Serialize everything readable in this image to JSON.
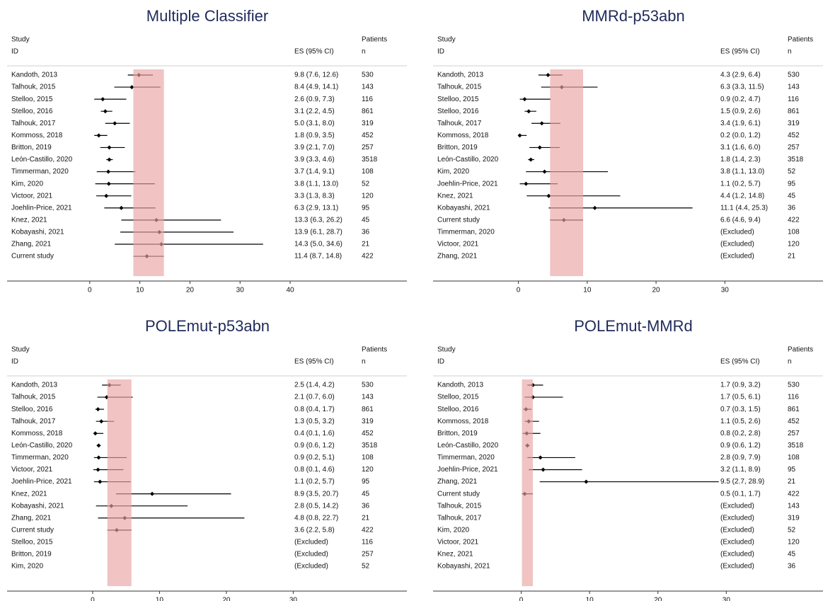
{
  "chart_data": [
    {
      "type": "forest",
      "title": "Multiple Classifier",
      "header": {
        "study": "Study",
        "id": "ID",
        "es": "ES (95% CI)",
        "patients": "Patients",
        "n": "n"
      },
      "categories": [
        "Kandoth, 2013",
        "Talhouk, 2015",
        "Stelloo, 2015",
        "Stelloo, 2016",
        "Talhouk, 2017",
        "Kommoss, 2018",
        "Britton, 2019",
        "León-Castillo, 2020",
        "Timmerman, 2020",
        "Kim, 2020",
        "Victoor, 2021",
        "Joehlin-Price, 2021",
        "Knez, 2021",
        "Kobayashi, 2021",
        "Zhang, 2021",
        "Current study"
      ],
      "values": [
        9.8,
        8.4,
        2.6,
        3.1,
        5.0,
        1.8,
        3.9,
        3.9,
        3.7,
        3.8,
        3.3,
        6.3,
        13.3,
        13.9,
        14.3,
        11.4
      ],
      "lower": [
        7.6,
        4.9,
        0.9,
        2.2,
        3.1,
        0.9,
        2.1,
        3.3,
        1.4,
        1.1,
        1.3,
        2.9,
        6.3,
        6.1,
        5.0,
        8.7
      ],
      "upper": [
        12.6,
        14.1,
        7.3,
        4.5,
        8.0,
        3.5,
        7.0,
        4.6,
        9.1,
        13.0,
        8.3,
        13.1,
        26.2,
        28.7,
        34.6,
        14.8
      ],
      "value_labels": [
        "9.8 (7.6, 12.6)",
        "8.4 (4.9, 14.1)",
        "2.6 (0.9, 7.3)",
        "3.1 (2.2, 4.5)",
        "5.0 (3.1, 8.0)",
        "1.8 (0.9, 3.5)",
        "3.9 (2.1, 7.0)",
        "3.9 (3.3, 4.6)",
        "3.7 (1.4, 9.1)",
        "3.8 (1.1, 13.0)",
        "3.3 (1.3, 8.3)",
        "6.3 (2.9, 13.1)",
        "13.3 (6.3, 26.2)",
        "13.9 (6.1, 28.7)",
        "14.3 (5.0, 34.6)",
        "11.4 (8.7, 14.8)"
      ],
      "n": [
        530,
        143,
        116,
        861,
        319,
        452,
        257,
        3518,
        108,
        52,
        120,
        95,
        45,
        36,
        21,
        422
      ],
      "band": [
        8.7,
        14.8
      ],
      "band_color": "#e9a3a3",
      "color": "#000000",
      "xlim": [
        -16.5,
        63.3
      ],
      "xticks": [
        0,
        10,
        20,
        30,
        40
      ]
    },
    {
      "type": "forest",
      "title": "MMRd-p53abn",
      "header": {
        "study": "Study",
        "id": "ID",
        "es": "ES (95% CI)",
        "patients": "Patients",
        "n": "n"
      },
      "categories": [
        "Kandoth, 2013",
        "Talhouk, 2015",
        "Stelloo, 2015",
        "Stelloo, 2016",
        "Talhouk, 2017",
        "Kommoss, 2018",
        "Britton, 2019",
        "León-Castillo, 2020",
        "Kim, 2020",
        "Joehlin-Price, 2021",
        "Knez, 2021",
        "Kobayashi, 2021",
        "Current study",
        "Timmerman, 2020",
        "Victoor, 2021",
        "Zhang, 2021"
      ],
      "values": [
        4.3,
        6.3,
        0.9,
        1.5,
        3.4,
        0.2,
        3.1,
        1.8,
        3.8,
        1.1,
        4.4,
        11.1,
        6.6,
        null,
        null,
        null
      ],
      "lower": [
        2.9,
        3.3,
        0.2,
        0.9,
        1.9,
        0.0,
        1.6,
        1.4,
        1.1,
        0.2,
        1.2,
        4.4,
        4.6,
        null,
        null,
        null
      ],
      "upper": [
        6.4,
        11.5,
        4.7,
        2.6,
        6.1,
        1.2,
        6.0,
        2.3,
        13.0,
        5.7,
        14.8,
        25.3,
        9.4,
        null,
        null,
        null
      ],
      "value_labels": [
        "4.3 (2.9, 6.4)",
        "6.3 (3.3, 11.5)",
        "0.9 (0.2, 4.7)",
        "1.5 (0.9, 2.6)",
        "3.4 (1.9, 6.1)",
        "0.2 (0.0, 1.2)",
        "3.1 (1.6, 6.0)",
        "1.8 (1.4, 2.3)",
        "3.8 (1.1, 13.0)",
        "1.1 (0.2, 5.7)",
        "4.4 (1.2, 14.8)",
        "11.1 (4.4, 25.3)",
        "6.6 (4.6, 9.4)",
        "(Excluded)",
        "(Excluded)",
        "(Excluded)"
      ],
      "n": [
        530,
        143,
        116,
        861,
        319,
        452,
        257,
        3518,
        52,
        95,
        45,
        36,
        422,
        108,
        120,
        21
      ],
      "band": [
        4.6,
        9.4
      ],
      "band_color": "#e9a3a3",
      "color": "#000000",
      "xlim": [
        -12.4,
        45.7
      ],
      "xticks": [
        0,
        10,
        20,
        30
      ]
    },
    {
      "type": "forest",
      "title": "POLEmut-p53abn",
      "header": {
        "study": "Study",
        "id": "ID",
        "es": "ES (95% CI)",
        "patients": "Patients",
        "n": "n"
      },
      "categories": [
        "Kandoth, 2013",
        "Talhouk, 2015",
        "Stelloo, 2016",
        "Talhouk, 2017",
        "Kommoss, 2018",
        "León-Castillo, 2020",
        "Timmerman, 2020",
        "Victoor, 2021",
        "Joehlin-Price, 2021",
        "Knez, 2021",
        "Kobayashi, 2021",
        "Zhang, 2021",
        "Current study",
        "Stelloo, 2015",
        "Britton, 2019",
        "Kim, 2020"
      ],
      "values": [
        2.5,
        2.1,
        0.8,
        1.3,
        0.4,
        0.9,
        0.9,
        0.8,
        1.1,
        8.9,
        2.8,
        4.8,
        3.6,
        null,
        null,
        null
      ],
      "lower": [
        1.4,
        0.7,
        0.4,
        0.5,
        0.1,
        0.6,
        0.2,
        0.1,
        0.2,
        3.5,
        0.5,
        0.8,
        2.2,
        null,
        null,
        null
      ],
      "upper": [
        4.2,
        6.0,
        1.7,
        3.2,
        1.6,
        1.2,
        5.1,
        4.6,
        5.7,
        20.7,
        14.2,
        22.7,
        5.8,
        null,
        null,
        null
      ],
      "value_labels": [
        "2.5 (1.4, 4.2)",
        "2.1 (0.7, 6.0)",
        "0.8 (0.4, 1.7)",
        "1.3 (0.5, 3.2)",
        "0.4 (0.1, 1.6)",
        "0.9 (0.6, 1.2)",
        "0.9 (0.2, 5.1)",
        "0.8 (0.1, 4.6)",
        "1.1 (0.2, 5.7)",
        "8.9 (3.5, 20.7)",
        "2.8 (0.5, 14.2)",
        "4.8 (0.8, 22.7)",
        "3.6 (2.2, 5.8)",
        "(Excluded)",
        "(Excluded)",
        "(Excluded)"
      ],
      "n": [
        530,
        143,
        861,
        319,
        452,
        3518,
        108,
        120,
        95,
        45,
        36,
        21,
        422,
        116,
        257,
        52
      ],
      "band": [
        2.2,
        5.8
      ],
      "band_color": "#e9a3a3",
      "color": "#000000",
      "xlim": [
        -12.8,
        47.0
      ],
      "xticks": [
        0,
        10,
        20,
        30
      ]
    },
    {
      "type": "forest",
      "title": "POLEmut-MMRd",
      "header": {
        "study": "Study",
        "id": "ID",
        "es": "ES (95% CI)",
        "patients": "Patients",
        "n": "n"
      },
      "categories": [
        "Kandoth, 2013",
        "Stelloo, 2015",
        "Stelloo, 2016",
        "Kommoss, 2018",
        "Britton, 2019",
        "León-Castillo, 2020",
        "Timmerman, 2020",
        "Joehlin-Price, 2021",
        "Zhang, 2021",
        "Current study",
        "Talhouk, 2015",
        "Talhouk, 2017",
        "Kim, 2020",
        "Victoor, 2021",
        "Knez, 2021",
        "Kobayashi, 2021"
      ],
      "values": [
        1.7,
        1.7,
        0.7,
        1.1,
        0.8,
        0.9,
        2.8,
        3.2,
        9.5,
        0.5,
        null,
        null,
        null,
        null,
        null,
        null
      ],
      "lower": [
        0.9,
        0.5,
        0.3,
        0.5,
        0.2,
        0.6,
        0.9,
        1.1,
        2.7,
        0.1,
        null,
        null,
        null,
        null,
        null,
        null
      ],
      "upper": [
        3.2,
        6.1,
        1.5,
        2.6,
        2.8,
        1.2,
        7.9,
        8.9,
        28.9,
        1.7,
        null,
        null,
        null,
        null,
        null,
        null
      ],
      "value_labels": [
        "1.7 (0.9, 3.2)",
        "1.7 (0.5, 6.1)",
        "0.7 (0.3, 1.5)",
        "1.1 (0.5, 2.6)",
        "0.8 (0.2, 2.8)",
        "0.9 (0.6, 1.2)",
        "2.8 (0.9, 7.9)",
        "3.2 (1.1, 8.9)",
        "9.5 (2.7, 28.9)",
        "0.5 (0.1, 1.7)",
        "(Excluded)",
        "(Excluded)",
        "(Excluded)",
        "(Excluded)",
        "(Excluded)",
        "(Excluded)"
      ],
      "n": [
        530,
        116,
        861,
        452,
        257,
        3518,
        108,
        95,
        21,
        422,
        143,
        319,
        52,
        120,
        45,
        36
      ],
      "band": [
        0.1,
        1.7
      ],
      "band_color": "#e9a3a3",
      "color": "#000000",
      "xlim": [
        -12.9,
        45.6
      ],
      "xticks": [
        0,
        10,
        20,
        30
      ]
    }
  ]
}
